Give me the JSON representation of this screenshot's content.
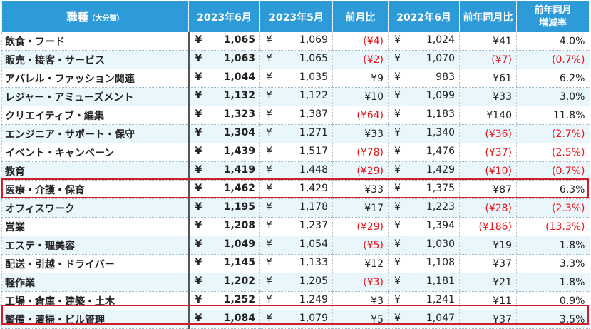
{
  "header": {
    "category_label": "職種",
    "category_sub": "（大分類）",
    "col_jun_2023": "2023年6月",
    "col_may_2023": "2023年5月",
    "col_mom": "前月比",
    "col_jun_2022": "2022年6月",
    "col_yoy": "前年同月比",
    "col_yoy_rate_line1": "前年同月",
    "col_yoy_rate_line2": "増減率"
  },
  "currency": "¥",
  "rows": [
    {
      "category": "飲食・フード",
      "jun2023": "1,065",
      "may2023": "1,069",
      "mom": "(¥4)",
      "mom_neg": true,
      "jun2022": "1,024",
      "yoy": "¥41",
      "yoy_neg": false,
      "rate": "4.0%",
      "rate_neg": false
    },
    {
      "category": "販売・接客・サービス",
      "jun2023": "1,063",
      "may2023": "1,065",
      "mom": "(¥2)",
      "mom_neg": true,
      "jun2022": "1,070",
      "yoy": "(¥7)",
      "yoy_neg": true,
      "rate": "(0.7%)",
      "rate_neg": true
    },
    {
      "category": "アパレル・ファッション関連",
      "jun2023": "1,044",
      "may2023": "1,035",
      "mom": "¥9",
      "mom_neg": false,
      "jun2022": "983",
      "yoy": "¥61",
      "yoy_neg": false,
      "rate": "6.2%",
      "rate_neg": false
    },
    {
      "category": "レジャー・アミューズメント",
      "jun2023": "1,132",
      "may2023": "1,122",
      "mom": "¥10",
      "mom_neg": false,
      "jun2022": "1,099",
      "yoy": "¥33",
      "yoy_neg": false,
      "rate": "3.0%",
      "rate_neg": false
    },
    {
      "category": "クリエイティブ・編集",
      "jun2023": "1,323",
      "may2023": "1,387",
      "mom": "(¥64)",
      "mom_neg": true,
      "jun2022": "1,183",
      "yoy": "¥140",
      "yoy_neg": false,
      "rate": "11.8%",
      "rate_neg": false
    },
    {
      "category": "エンジニア・サポート・保守",
      "jun2023": "1,304",
      "may2023": "1,271",
      "mom": "¥33",
      "mom_neg": false,
      "jun2022": "1,340",
      "yoy": "(¥36)",
      "yoy_neg": true,
      "rate": "(2.7%)",
      "rate_neg": true
    },
    {
      "category": "イベント・キャンペーン",
      "jun2023": "1,439",
      "may2023": "1,517",
      "mom": "(¥78)",
      "mom_neg": true,
      "jun2022": "1,476",
      "yoy": "(¥37)",
      "yoy_neg": true,
      "rate": "(2.5%)",
      "rate_neg": true
    },
    {
      "category": "教育",
      "jun2023": "1,419",
      "may2023": "1,448",
      "mom": "(¥29)",
      "mom_neg": true,
      "jun2022": "1,429",
      "yoy": "(¥10)",
      "yoy_neg": true,
      "rate": "(0.7%)",
      "rate_neg": true
    },
    {
      "category": "医療・介護・保育",
      "jun2023": "1,462",
      "may2023": "1,429",
      "mom": "¥33",
      "mom_neg": false,
      "jun2022": "1,375",
      "yoy": "¥87",
      "yoy_neg": false,
      "rate": "6.3%",
      "rate_neg": false
    },
    {
      "category": "オフィスワーク",
      "jun2023": "1,195",
      "may2023": "1,178",
      "mom": "¥17",
      "mom_neg": false,
      "jun2022": "1,223",
      "yoy": "(¥28)",
      "yoy_neg": true,
      "rate": "(2.3%)",
      "rate_neg": true
    },
    {
      "category": "営業",
      "jun2023": "1,208",
      "may2023": "1,237",
      "mom": "(¥29)",
      "mom_neg": true,
      "jun2022": "1,394",
      "yoy": "(¥186)",
      "yoy_neg": true,
      "rate": "(13.3%)",
      "rate_neg": true
    },
    {
      "category": "エステ・理美容",
      "jun2023": "1,049",
      "may2023": "1,054",
      "mom": "(¥5)",
      "mom_neg": true,
      "jun2022": "1,030",
      "yoy": "¥19",
      "yoy_neg": false,
      "rate": "1.8%",
      "rate_neg": false
    },
    {
      "category": "配送・引越・ドライバー",
      "jun2023": "1,145",
      "may2023": "1,133",
      "mom": "¥12",
      "mom_neg": false,
      "jun2022": "1,108",
      "yoy": "¥37",
      "yoy_neg": false,
      "rate": "3.3%",
      "rate_neg": false
    },
    {
      "category": "軽作業",
      "jun2023": "1,202",
      "may2023": "1,205",
      "mom": "(¥3)",
      "mom_neg": true,
      "jun2022": "1,181",
      "yoy": "¥21",
      "yoy_neg": false,
      "rate": "1.8%",
      "rate_neg": false
    },
    {
      "category": "工場・倉庫・建築・土木",
      "jun2023": "1,252",
      "may2023": "1,249",
      "mom": "¥3",
      "mom_neg": false,
      "jun2022": "1,241",
      "yoy": "¥11",
      "yoy_neg": false,
      "rate": "0.9%",
      "rate_neg": false
    },
    {
      "category": "警備・清掃・ビル管理",
      "jun2023": "1,084",
      "may2023": "1,079",
      "mom": "¥5",
      "mom_neg": false,
      "jun2022": "1,047",
      "yoy": "¥37",
      "yoy_neg": false,
      "rate": "3.5%",
      "rate_neg": false
    }
  ],
  "highlight_color": "#d01f2a",
  "negative_color": "#e8141a",
  "header_color": "#2e9bd9"
}
